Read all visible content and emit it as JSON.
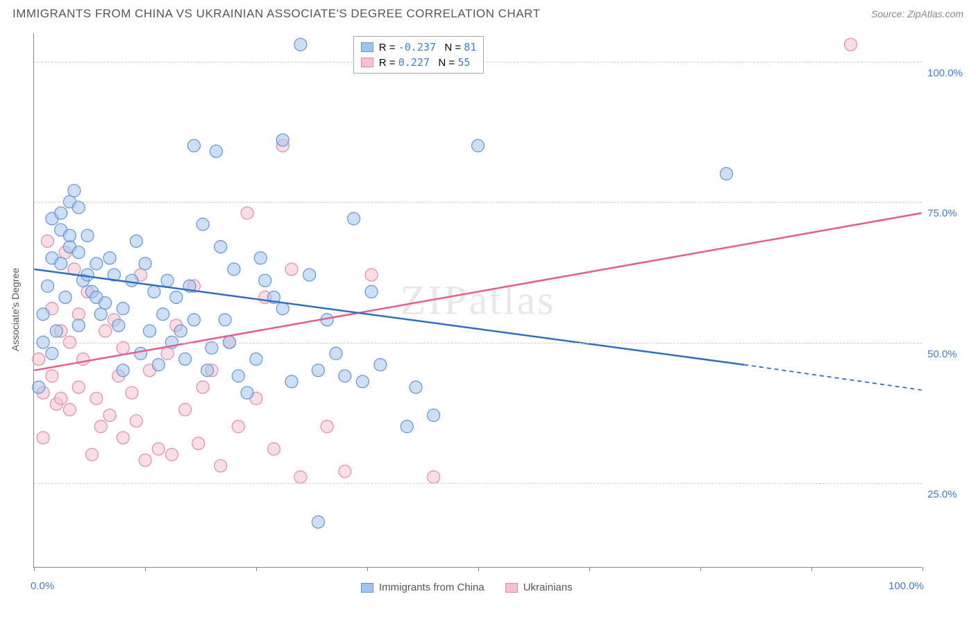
{
  "header": {
    "title": "IMMIGRANTS FROM CHINA VS UKRAINIAN ASSOCIATE'S DEGREE CORRELATION CHART",
    "source": "Source: ZipAtlas.com"
  },
  "watermark": "ZIPatlas",
  "chart": {
    "type": "scatter",
    "ylabel": "Associate's Degree",
    "background_color": "#ffffff",
    "grid_color": "#cccccc",
    "xlim": [
      0,
      100
    ],
    "ylim": [
      10,
      105
    ],
    "xtick_positions": [
      0,
      12.5,
      25,
      37.5,
      50,
      62.5,
      75,
      87.5,
      100
    ],
    "xtick_labels": {
      "0": "0.0%",
      "100": "100.0%"
    },
    "ytick_positions": [
      25,
      50,
      75,
      100
    ],
    "ytick_labels": {
      "25": "25.0%",
      "50": "50.0%",
      "75": "75.0%",
      "100": "100.0%"
    },
    "series": {
      "blue": {
        "label": "Immigrants from China",
        "fill": "#a3c4f0",
        "stroke": "#5f94d6",
        "line_color": "#2f6fc0",
        "fill_opacity": 0.55,
        "marker_radius": 9,
        "R": "-0.237",
        "N": "81",
        "trend": {
          "x1": 0,
          "y1": 63,
          "x2": 80,
          "y2": 46,
          "x_dash_from": 80,
          "x3": 100,
          "y3": 41.5
        },
        "points": [
          [
            0.5,
            42
          ],
          [
            1,
            50
          ],
          [
            1,
            55
          ],
          [
            1.5,
            60
          ],
          [
            2,
            65
          ],
          [
            2,
            72
          ],
          [
            2,
            48
          ],
          [
            2.5,
            52
          ],
          [
            3,
            70
          ],
          [
            3,
            73
          ],
          [
            3,
            64
          ],
          [
            3.5,
            58
          ],
          [
            4,
            67
          ],
          [
            4,
            75
          ],
          [
            4,
            69
          ],
          [
            4.5,
            77
          ],
          [
            5,
            66
          ],
          [
            5,
            74
          ],
          [
            5,
            53
          ],
          [
            5.5,
            61
          ],
          [
            6,
            62
          ],
          [
            6,
            69
          ],
          [
            6.5,
            59
          ],
          [
            7,
            58
          ],
          [
            7,
            64
          ],
          [
            7.5,
            55
          ],
          [
            8,
            57
          ],
          [
            8.5,
            65
          ],
          [
            9,
            62
          ],
          [
            9.5,
            53
          ],
          [
            10,
            56
          ],
          [
            10,
            45
          ],
          [
            11,
            61
          ],
          [
            11.5,
            68
          ],
          [
            12,
            48
          ],
          [
            12.5,
            64
          ],
          [
            13,
            52
          ],
          [
            13.5,
            59
          ],
          [
            14,
            46
          ],
          [
            14.5,
            55
          ],
          [
            15,
            61
          ],
          [
            15.5,
            50
          ],
          [
            16,
            58
          ],
          [
            16.5,
            52
          ],
          [
            17,
            47
          ],
          [
            17.5,
            60
          ],
          [
            18,
            54
          ],
          [
            18,
            85
          ],
          [
            19,
            71
          ],
          [
            19.5,
            45
          ],
          [
            20,
            49
          ],
          [
            20.5,
            84
          ],
          [
            21,
            67
          ],
          [
            21.5,
            54
          ],
          [
            22,
            50
          ],
          [
            22.5,
            63
          ],
          [
            23,
            44
          ],
          [
            24,
            41
          ],
          [
            25,
            47
          ],
          [
            25.5,
            65
          ],
          [
            26,
            61
          ],
          [
            27,
            58
          ],
          [
            28,
            86
          ],
          [
            28,
            56
          ],
          [
            29,
            43
          ],
          [
            30,
            103
          ],
          [
            31,
            62
          ],
          [
            32,
            45
          ],
          [
            32,
            18
          ],
          [
            33,
            54
          ],
          [
            34,
            48
          ],
          [
            35,
            44
          ],
          [
            36,
            72
          ],
          [
            37,
            43
          ],
          [
            38,
            59
          ],
          [
            39,
            46
          ],
          [
            42,
            35
          ],
          [
            43,
            42
          ],
          [
            45,
            37
          ],
          [
            50,
            85
          ],
          [
            78,
            80
          ]
        ]
      },
      "pink": {
        "label": "Ukrainians",
        "fill": "#f6c1cf",
        "stroke": "#e48aa3",
        "line_color": "#e75b8d",
        "fill_opacity": 0.55,
        "marker_radius": 9,
        "R": "0.227",
        "N": "55",
        "trend": {
          "x1": 0,
          "y1": 45,
          "x2": 100,
          "y2": 73
        },
        "points": [
          [
            0.5,
            47
          ],
          [
            1,
            33
          ],
          [
            1,
            41
          ],
          [
            1.5,
            68
          ],
          [
            2,
            44
          ],
          [
            2,
            56
          ],
          [
            2.5,
            39
          ],
          [
            3,
            52
          ],
          [
            3,
            40
          ],
          [
            3.5,
            66
          ],
          [
            4,
            50
          ],
          [
            4,
            38
          ],
          [
            4.5,
            63
          ],
          [
            5,
            55
          ],
          [
            5,
            42
          ],
          [
            5.5,
            47
          ],
          [
            6,
            59
          ],
          [
            6.5,
            30
          ],
          [
            7,
            40
          ],
          [
            7.5,
            35
          ],
          [
            8,
            52
          ],
          [
            8.5,
            37
          ],
          [
            9,
            54
          ],
          [
            9.5,
            44
          ],
          [
            10,
            49
          ],
          [
            10,
            33
          ],
          [
            11,
            41
          ],
          [
            11.5,
            36
          ],
          [
            12,
            62
          ],
          [
            12.5,
            29
          ],
          [
            13,
            45
          ],
          [
            14,
            31
          ],
          [
            15,
            48
          ],
          [
            15.5,
            30
          ],
          [
            16,
            53
          ],
          [
            17,
            38
          ],
          [
            18,
            60
          ],
          [
            18.5,
            32
          ],
          [
            19,
            42
          ],
          [
            20,
            45
          ],
          [
            21,
            28
          ],
          [
            22,
            50
          ],
          [
            23,
            35
          ],
          [
            24,
            73
          ],
          [
            25,
            40
          ],
          [
            26,
            58
          ],
          [
            27,
            31
          ],
          [
            28,
            85
          ],
          [
            29,
            63
          ],
          [
            30,
            26
          ],
          [
            33,
            35
          ],
          [
            35,
            27
          ],
          [
            38,
            62
          ],
          [
            45,
            26
          ],
          [
            92,
            103
          ]
        ]
      }
    },
    "legend_top": {
      "r_label": "R =",
      "n_label": "N ="
    },
    "legend_bottom_position": "bottom-center"
  }
}
